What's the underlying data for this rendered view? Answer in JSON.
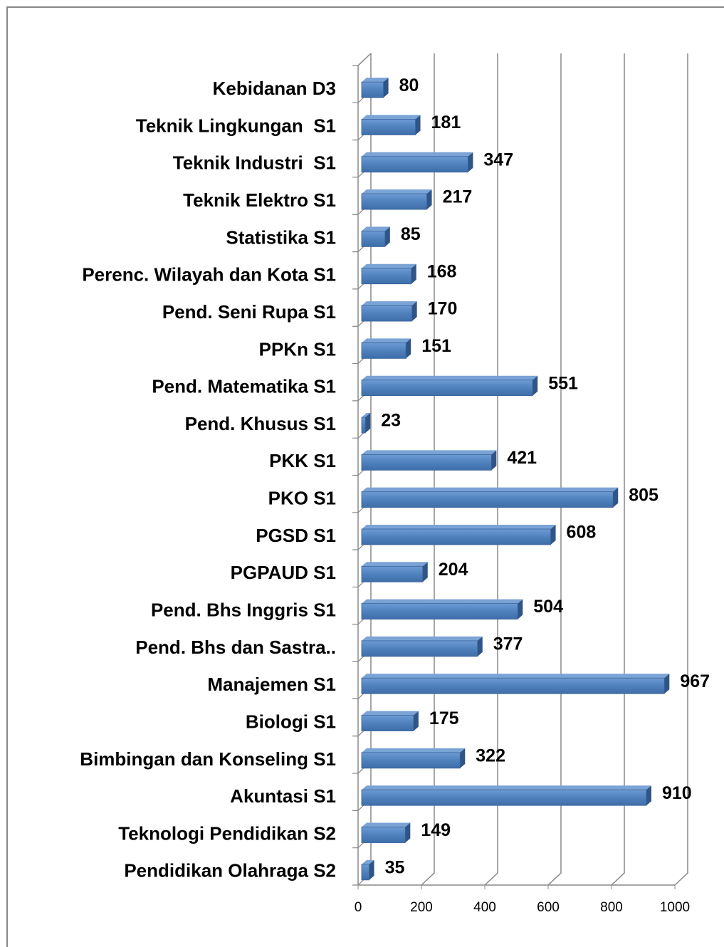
{
  "chart_data": {
    "type": "bar",
    "orientation": "horizontal",
    "categories": [
      "Kebidanan D3",
      "Teknik Lingkungan  S1",
      "Teknik Industri  S1",
      "Teknik Elektro S1",
      "Statistika S1",
      "Perenc. Wilayah dan Kota S1",
      "Pend. Seni Rupa S1",
      "PPKn S1",
      "Pend. Matematika S1",
      "Pend. Khusus S1",
      "PKK S1",
      "PKO S1",
      "PGSD S1",
      "PGPAUD S1",
      "Pend. Bhs Inggris S1",
      "Pend. Bhs dan Sastra..",
      "Manajemen S1",
      "Biologi S1",
      "Bimbingan dan Konseling S1",
      "Akuntasi S1",
      "Teknologi Pendidikan S2",
      "Pendidikan Olahraga S2"
    ],
    "values": [
      80,
      181,
      347,
      217,
      85,
      168,
      170,
      151,
      551,
      23,
      421,
      805,
      608,
      204,
      504,
      377,
      967,
      175,
      322,
      910,
      149,
      35
    ],
    "color": "#4f81bd",
    "xlim": [
      0,
      1000
    ],
    "xticks": [
      0,
      200,
      400,
      600,
      800,
      1000
    ],
    "grid": true
  }
}
